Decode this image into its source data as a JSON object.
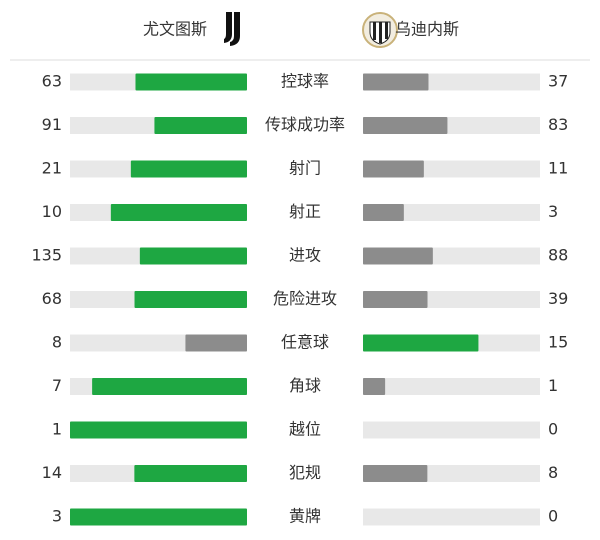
{
  "chart_data": {
    "type": "comparison",
    "categories": [
      "控球率",
      "传球成功率",
      "射门",
      "射正",
      "进攻",
      "危险进攻",
      "任意球",
      "角球",
      "越位",
      "犯规",
      "黄牌"
    ],
    "series": [
      {
        "name": "尤文图斯",
        "values": [
          63,
          91,
          21,
          10,
          135,
          68,
          8,
          7,
          1,
          14,
          3
        ]
      },
      {
        "name": "乌迪内斯",
        "values": [
          37,
          83,
          11,
          3,
          88,
          39,
          15,
          1,
          0,
          8,
          0
        ]
      }
    ],
    "win_color": "#1ea742",
    "lose_color": "#8c8c8c",
    "track_color": "#e8e8e8"
  }
}
